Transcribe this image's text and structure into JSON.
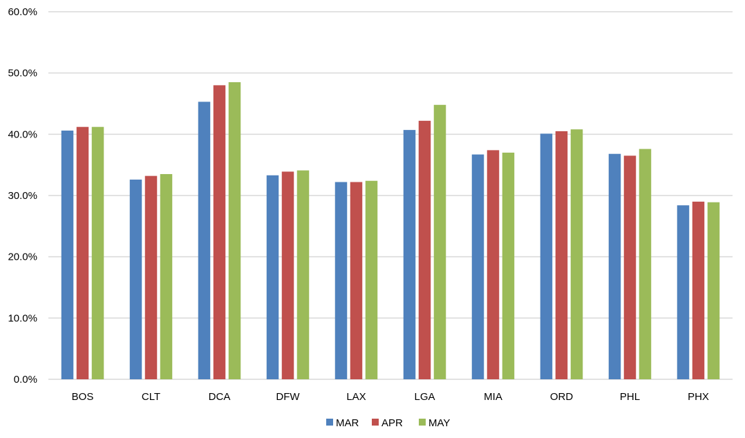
{
  "chart_data": {
    "type": "bar",
    "categories": [
      "BOS",
      "CLT",
      "DCA",
      "DFW",
      "LAX",
      "LGA",
      "MIA",
      "ORD",
      "PHL",
      "PHX"
    ],
    "series": [
      {
        "name": "MAR",
        "color": "#4f81bd",
        "values": [
          40.6,
          32.6,
          45.3,
          33.3,
          32.2,
          40.7,
          36.7,
          40.1,
          36.8,
          28.4
        ]
      },
      {
        "name": "APR",
        "color": "#c0504d",
        "values": [
          41.2,
          33.2,
          48.0,
          33.9,
          32.2,
          42.2,
          37.4,
          40.5,
          36.5,
          29.0
        ]
      },
      {
        "name": "MAY",
        "color": "#9bbb59",
        "values": [
          41.2,
          33.5,
          48.5,
          34.1,
          32.4,
          44.8,
          37.0,
          40.8,
          37.6,
          28.9
        ]
      }
    ],
    "ylim": [
      0,
      60
    ],
    "y_ticks": [
      0,
      10,
      20,
      30,
      40,
      50,
      60
    ],
    "y_tick_labels": [
      "0.0%",
      "10.0%",
      "20.0%",
      "30.0%",
      "40.0%",
      "50.0%",
      "60.0%"
    ],
    "grid": true,
    "legend_position": "bottom-center",
    "title": "",
    "xlabel": "",
    "ylabel": ""
  }
}
